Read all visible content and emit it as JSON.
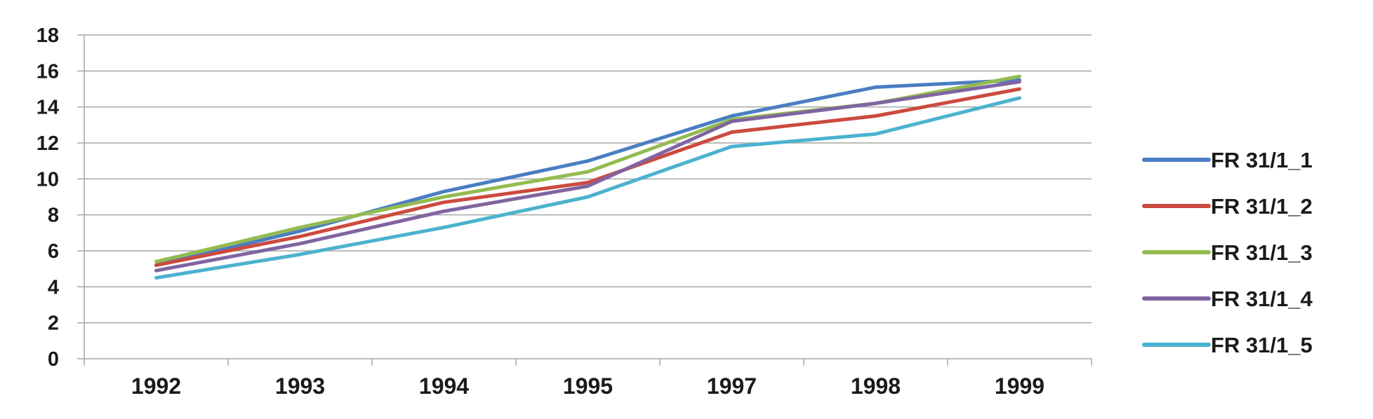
{
  "chart_data": {
    "type": "line",
    "title": "",
    "xlabel": "",
    "ylabel": "",
    "categories": [
      "1992",
      "1993",
      "1994",
      "1995",
      "1997",
      "1998",
      "1999"
    ],
    "ylim": [
      0,
      18
    ],
    "yticks": [
      "0",
      "2",
      "4",
      "6",
      "8",
      "10",
      "12",
      "14",
      "16",
      "18"
    ],
    "grid": "horizontal",
    "legend_position": "right",
    "series": [
      {
        "name": "FR 31/1_1",
        "color": "#4a7ec3",
        "values": [
          5.2,
          7.1,
          9.3,
          11.0,
          13.5,
          15.1,
          15.5
        ]
      },
      {
        "name": "FR 31/1_2",
        "color": "#cc4a3f",
        "values": [
          5.2,
          6.8,
          8.7,
          9.8,
          12.6,
          13.5,
          15.0
        ]
      },
      {
        "name": "FR 31/1_3",
        "color": "#93bb4f",
        "values": [
          5.4,
          7.3,
          9.0,
          10.4,
          13.3,
          14.2,
          15.7
        ]
      },
      {
        "name": "FR 31/1_4",
        "color": "#8064a2",
        "values": [
          4.9,
          6.4,
          8.2,
          9.6,
          13.2,
          14.2,
          15.4
        ]
      },
      {
        "name": "FR 31/1_5",
        "color": "#4bb2cf",
        "values": [
          4.5,
          5.8,
          7.3,
          9.0,
          11.8,
          12.5,
          14.5
        ]
      }
    ]
  }
}
